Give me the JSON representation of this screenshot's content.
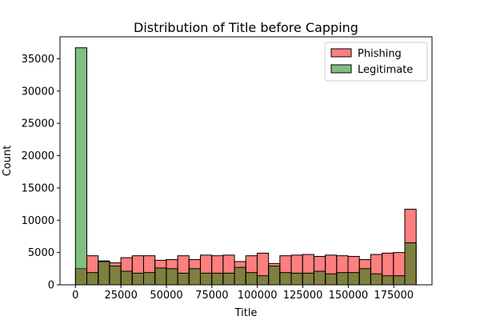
{
  "chart_data": {
    "type": "bar",
    "title": "Distribution of Title before Capping",
    "xlabel": "Title",
    "ylabel": "Count",
    "xlim": [
      -8500,
      196000
    ],
    "ylim": [
      0,
      38400
    ],
    "xticks": [
      0,
      25000,
      50000,
      75000,
      100000,
      125000,
      150000,
      175000
    ],
    "yticks": [
      0,
      5000,
      10000,
      15000,
      20000,
      25000,
      30000,
      35000
    ],
    "bin_start": 0,
    "bin_width": 6243,
    "legend_position": "upper right",
    "grid": false,
    "series": [
      {
        "name": "Phishing",
        "color": "#ff0000",
        "opacity": 0.5,
        "values": [
          2500,
          4500,
          3700,
          3400,
          4200,
          4500,
          4500,
          3800,
          3900,
          4500,
          3900,
          4600,
          4500,
          4600,
          3600,
          4500,
          4900,
          3300,
          4500,
          4600,
          4700,
          4400,
          4600,
          4500,
          4400,
          3900,
          4700,
          4900,
          5000,
          11700
        ]
      },
      {
        "name": "Legitimate",
        "color": "#008000",
        "opacity": 0.5,
        "values": [
          36700,
          1900,
          3600,
          2900,
          2100,
          1800,
          1900,
          2600,
          2500,
          1800,
          2500,
          1800,
          1800,
          1800,
          2700,
          1900,
          1400,
          2900,
          1900,
          1800,
          1800,
          2100,
          1700,
          1900,
          1900,
          2500,
          1700,
          1400,
          1400,
          6500
        ]
      }
    ]
  }
}
